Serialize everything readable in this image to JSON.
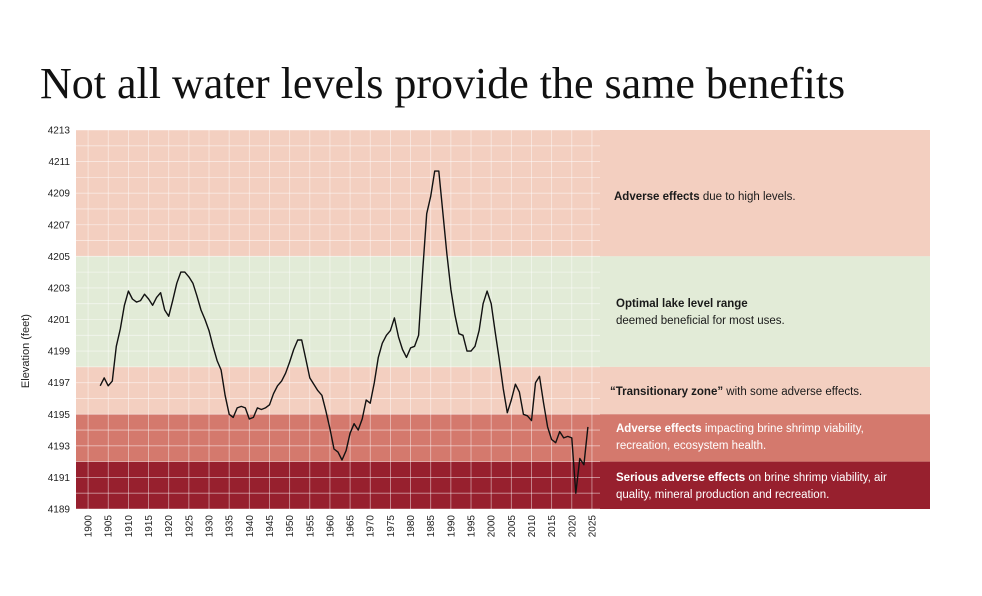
{
  "title": "Not all water levels provide the same benefits",
  "chart_data": {
    "type": "line",
    "title": "Not all water levels provide the same benefits",
    "xlabel": "",
    "ylabel": "Elevation (feet)",
    "xlim": [
      1897,
      2027
    ],
    "ylim": [
      4189,
      4213
    ],
    "x_ticks": [
      1900,
      1905,
      1910,
      1915,
      1920,
      1925,
      1930,
      1935,
      1940,
      1945,
      1950,
      1955,
      1960,
      1965,
      1970,
      1975,
      1980,
      1985,
      1990,
      1995,
      2000,
      2005,
      2010,
      2015,
      2020,
      2025
    ],
    "y_ticks": [
      4189,
      4191,
      4193,
      4195,
      4197,
      4199,
      4201,
      4203,
      4205,
      4207,
      4209,
      4211,
      4213
    ],
    "grid": true,
    "zones": [
      {
        "name": "high",
        "from": 4205,
        "to": 4213,
        "color": "#f3cfc0",
        "label_bold": "Adverse effects",
        "label_rest": " due to high levels."
      },
      {
        "name": "optimal",
        "from": 4198,
        "to": 4205,
        "color": "#e2ebd7",
        "label_bold": "Optimal lake level range",
        "label_rest": "deemed beneficial for most uses."
      },
      {
        "name": "transitional",
        "from": 4195,
        "to": 4198,
        "color": "#f3cfc0",
        "label_bold": "“Transitionary zone”",
        "label_rest": " with some adverse effects."
      },
      {
        "name": "adverse-low",
        "from": 4192,
        "to": 4195,
        "color": "#d4796d",
        "label_bold": "Adverse effects",
        "label_rest": " impacting brine shrimp viability, recreation, ecosystem health."
      },
      {
        "name": "serious",
        "from": 4189,
        "to": 4192,
        "color": "#97202e",
        "label_bold": "Serious adverse effects",
        "label_rest": " on brine shrimp viability, air quality, mineral production and recreation."
      }
    ],
    "series": [
      {
        "color": "#111111",
        "x": [
          1903,
          1904,
          1905,
          1906,
          1907,
          1908,
          1909,
          1910,
          1911,
          1912,
          1913,
          1914,
          1915,
          1916,
          1917,
          1918,
          1919,
          1920,
          1921,
          1922,
          1923,
          1924,
          1925,
          1926,
          1927,
          1928,
          1929,
          1930,
          1931,
          1932,
          1933,
          1934,
          1935,
          1936,
          1937,
          1938,
          1939,
          1940,
          1941,
          1942,
          1943,
          1944,
          1945,
          1946,
          1947,
          1948,
          1949,
          1950,
          1951,
          1952,
          1953,
          1954,
          1955,
          1956,
          1957,
          1958,
          1959,
          1960,
          1961,
          1962,
          1963,
          1964,
          1965,
          1966,
          1967,
          1968,
          1969,
          1970,
          1971,
          1972,
          1973,
          1974,
          1975,
          1976,
          1977,
          1978,
          1979,
          1980,
          1981,
          1982,
          1983,
          1984,
          1985,
          1986,
          1987,
          1988,
          1989,
          1990,
          1991,
          1992,
          1993,
          1994,
          1995,
          1996,
          1997,
          1998,
          1999,
          2000,
          2001,
          2002,
          2003,
          2004,
          2005,
          2006,
          2007,
          2008,
          2009,
          2010,
          2011,
          2012,
          2013,
          2014,
          2015,
          2016,
          2017,
          2018,
          2019,
          2020,
          2021,
          2022,
          2023,
          2024
        ],
        "y": [
          4196.8,
          4197.3,
          4196.8,
          4197.1,
          4199.3,
          4200.4,
          4201.9,
          4202.8,
          4202.3,
          4202.1,
          4202.2,
          4202.6,
          4202.3,
          4201.9,
          4202.4,
          4202.7,
          4201.6,
          4201.2,
          4202.2,
          4203.3,
          4204.0,
          4204.0,
          4203.7,
          4203.3,
          4202.5,
          4201.6,
          4201.0,
          4200.3,
          4199.3,
          4198.4,
          4197.8,
          4196.2,
          4195.0,
          4194.8,
          4195.4,
          4195.5,
          4195.4,
          4194.7,
          4194.8,
          4195.4,
          4195.3,
          4195.4,
          4195.6,
          4196.3,
          4196.8,
          4197.1,
          4197.6,
          4198.3,
          4199.1,
          4199.7,
          4199.7,
          4198.5,
          4197.3,
          4196.9,
          4196.5,
          4196.2,
          4195.2,
          4194.1,
          4192.8,
          4192.6,
          4192.1,
          4192.7,
          4193.8,
          4194.4,
          4194.0,
          4194.7,
          4195.9,
          4195.7,
          4197.0,
          4198.6,
          4199.5,
          4200.0,
          4200.3,
          4201.1,
          4199.9,
          4199.1,
          4198.6,
          4199.2,
          4199.3,
          4200.0,
          4204.0,
          4207.7,
          4208.8,
          4210.4,
          4210.4,
          4207.8,
          4205.2,
          4202.9,
          4201.3,
          4200.1,
          4200.0,
          4199.0,
          4199.0,
          4199.3,
          4200.3,
          4202.0,
          4202.8,
          4202.0,
          4200.2,
          4198.5,
          4196.6,
          4195.1,
          4195.9,
          4196.9,
          4196.4,
          4195.0,
          4194.9,
          4194.6,
          4197.0,
          4197.4,
          4195.7,
          4194.2,
          4193.4,
          4193.2,
          4193.9,
          4193.5,
          4193.6,
          4193.5,
          4190.0,
          4192.2,
          4191.8,
          4194.2
        ]
      }
    ]
  }
}
